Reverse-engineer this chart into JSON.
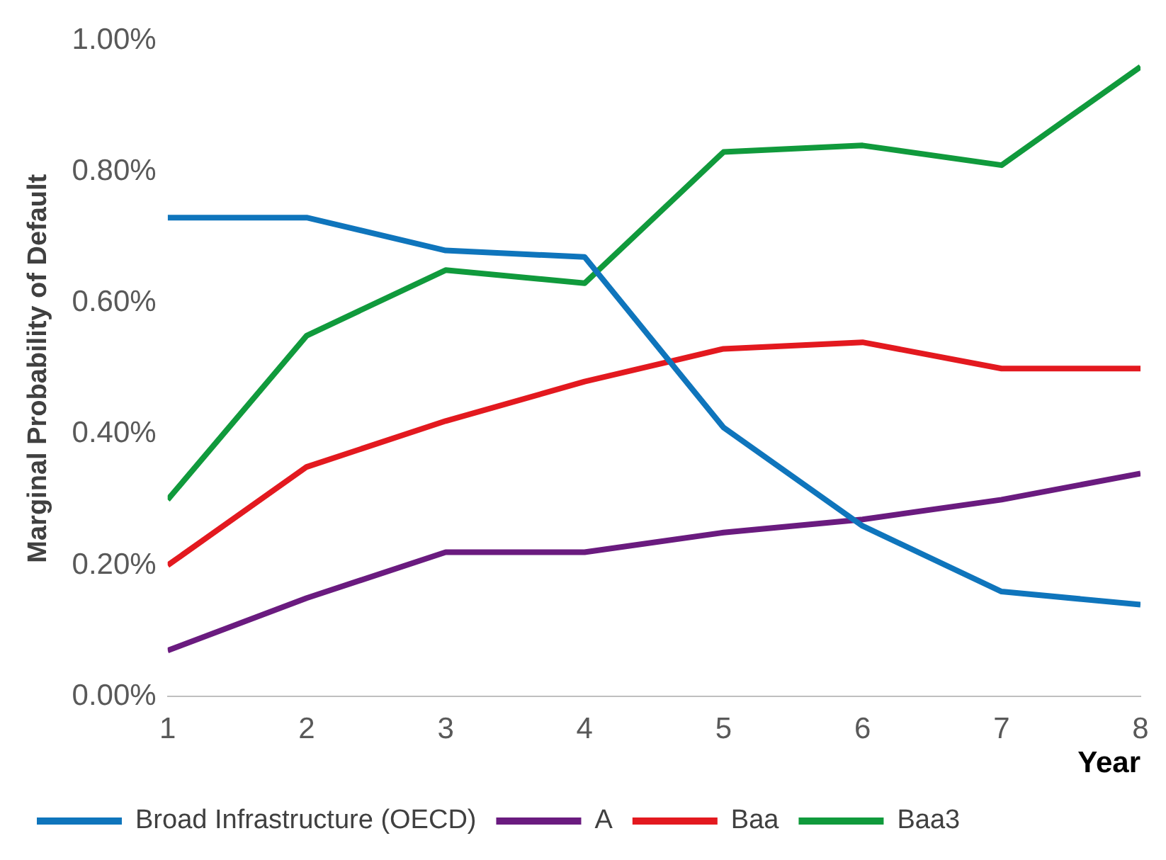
{
  "chart_data": {
    "type": "line",
    "xlabel": "Year",
    "ylabel": "Marginal Probability of Default",
    "x": [
      1,
      2,
      3,
      4,
      5,
      6,
      7,
      8
    ],
    "series": [
      {
        "name": "Broad Infrastructure (OECD)",
        "color": "#0f75bc",
        "values": [
          0.73,
          0.73,
          0.68,
          0.67,
          0.41,
          0.26,
          0.16,
          0.14
        ]
      },
      {
        "name": "A",
        "color": "#6a1b7f",
        "values": [
          0.07,
          0.15,
          0.22,
          0.22,
          0.25,
          0.27,
          0.3,
          0.34
        ]
      },
      {
        "name": "Baa",
        "color": "#e3191f",
        "values": [
          0.2,
          0.35,
          0.42,
          0.48,
          0.53,
          0.54,
          0.5,
          0.5
        ]
      },
      {
        "name": "Baa3",
        "color": "#109a3c",
        "values": [
          0.3,
          0.55,
          0.65,
          0.63,
          0.83,
          0.84,
          0.81,
          0.96
        ]
      }
    ],
    "xlim": [
      1,
      8
    ],
    "xticks": [
      1,
      2,
      3,
      4,
      5,
      6,
      7,
      8
    ],
    "ylim": [
      0,
      1
    ],
    "yticks": [
      {
        "value": 0,
        "label": "0.00%"
      },
      {
        "value": 0.2,
        "label": "0.20%"
      },
      {
        "value": 0.4,
        "label": "0.40%"
      },
      {
        "value": 0.6,
        "label": "0.60%"
      },
      {
        "value": 0.8,
        "label": "0.80%"
      },
      {
        "value": 1,
        "label": "1.00%"
      }
    ],
    "grid": false,
    "legend": "bottom",
    "marker": "none",
    "line_style": "solid"
  }
}
